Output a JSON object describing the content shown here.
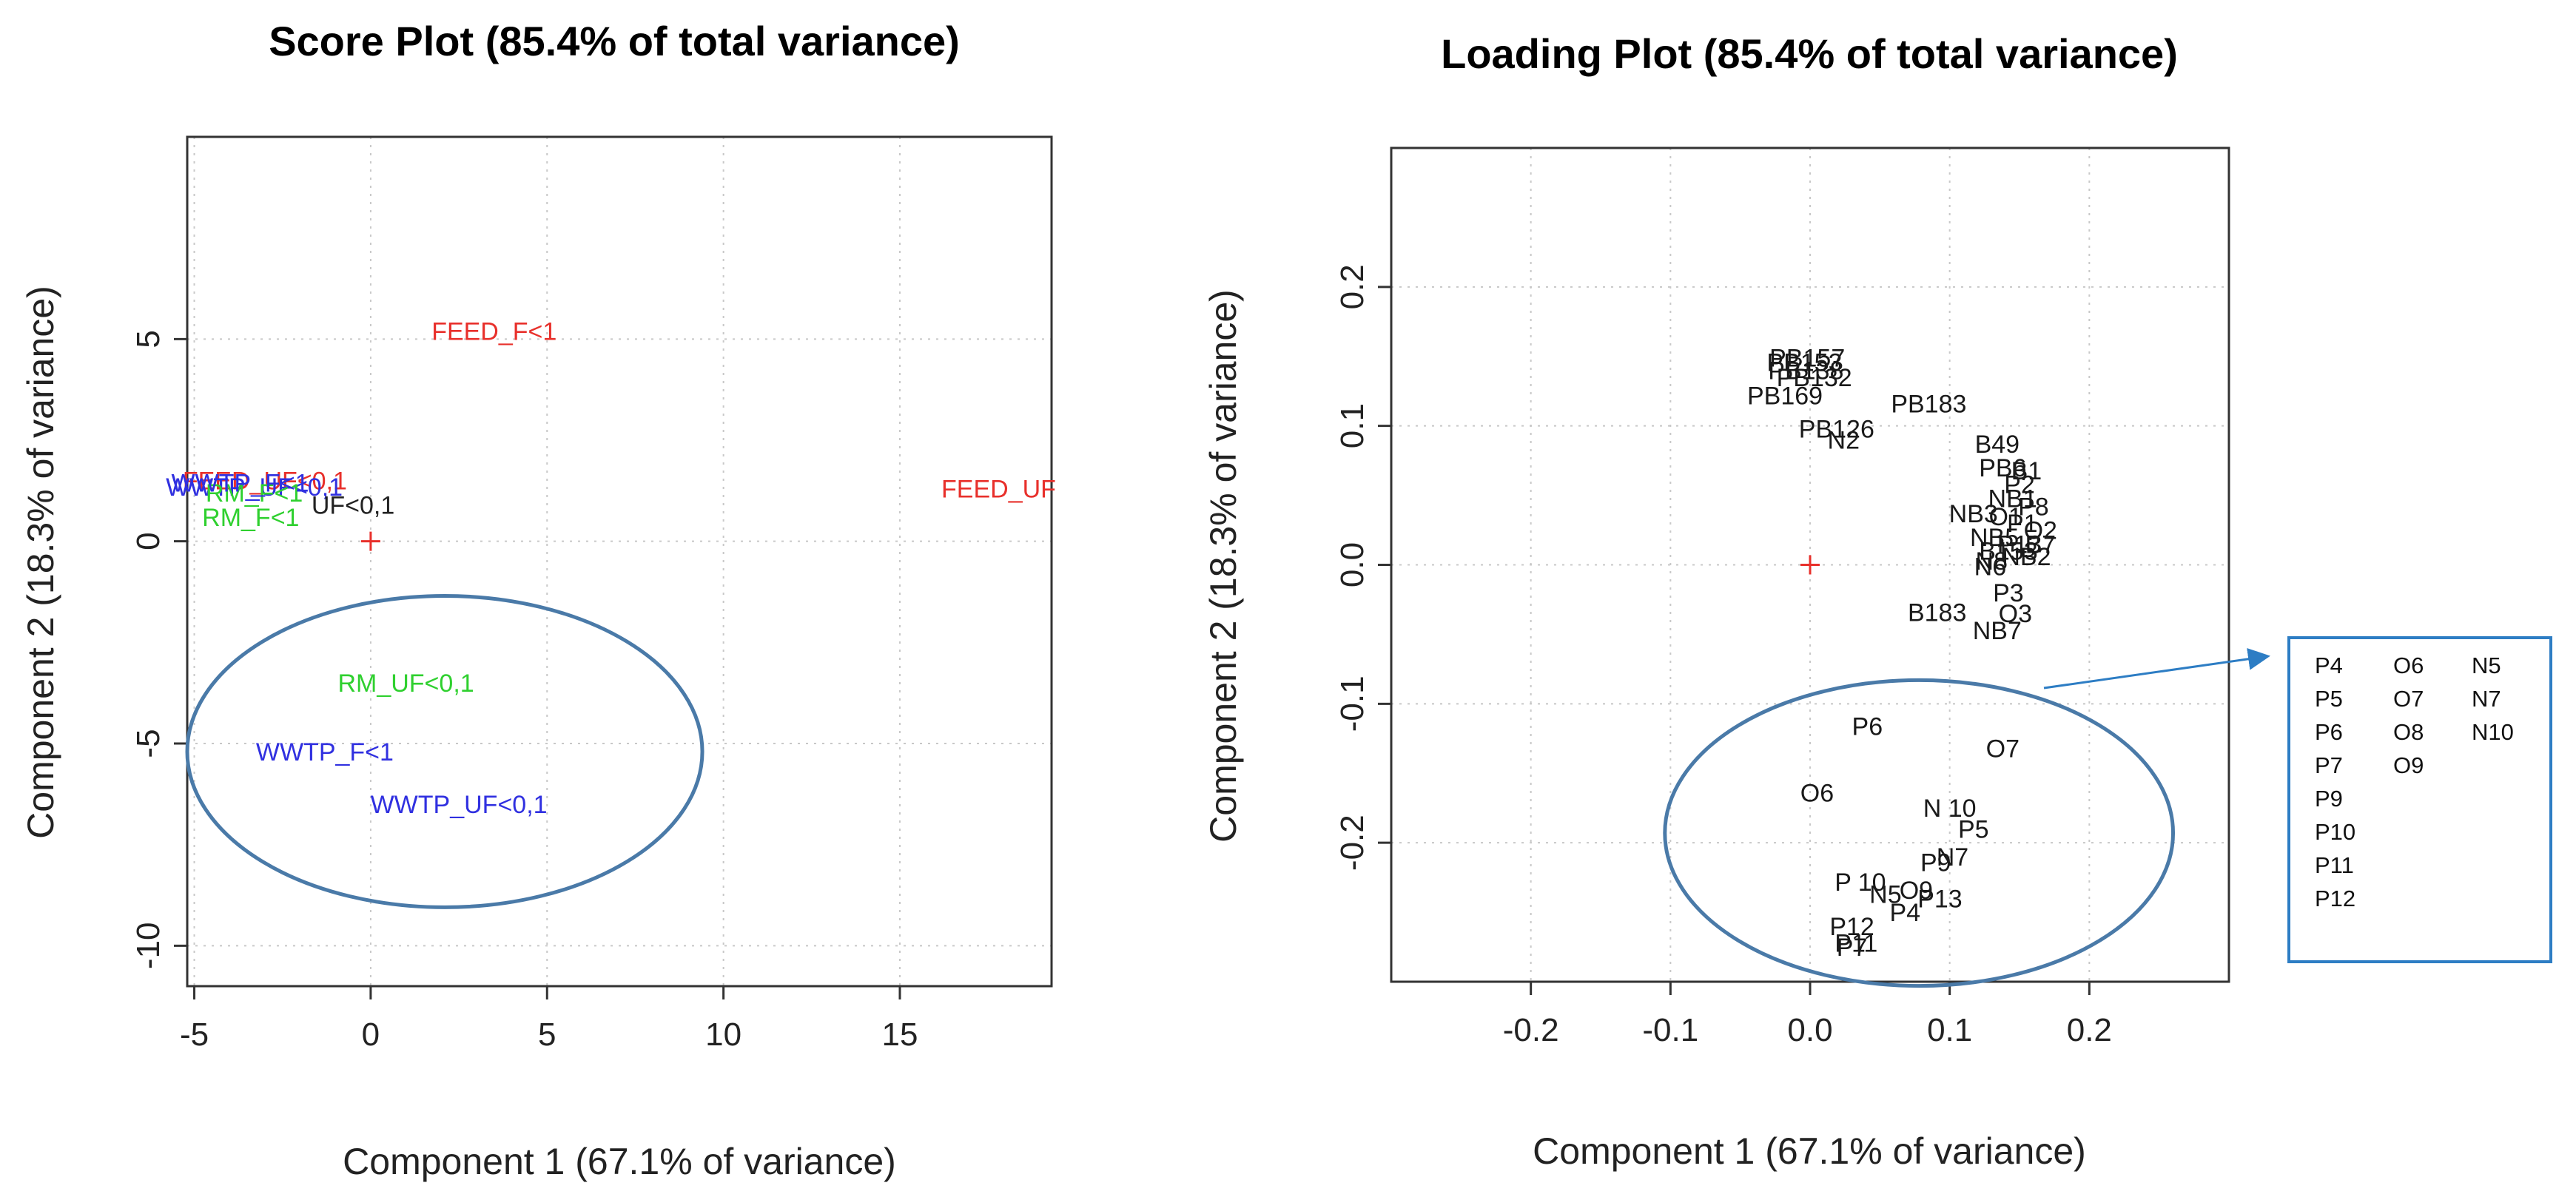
{
  "chart_data": [
    {
      "type": "scatter",
      "title": "Score Plot (85.4% of total variance)",
      "xlabel": "Component 1 (67.1% of variance)",
      "ylabel": "Component 2 (18.3% of variance)",
      "xlim": [
        -5.2,
        19.3
      ],
      "ylim": [
        -11.0,
        10.0
      ],
      "xticks": [
        -5,
        0,
        5,
        10,
        15
      ],
      "yticks": [
        -10,
        -5,
        0,
        5
      ],
      "grid": true,
      "origin_marker": "+",
      "points": [
        {
          "label": "FEED_F<1",
          "x": 3.5,
          "y": 5.2,
          "color": "#e8302b"
        },
        {
          "label": "FEED_UF",
          "x": 17.8,
          "y": 1.3,
          "color": "#e8302b"
        },
        {
          "label": "FEED_UF<0,1",
          "x": -3.0,
          "y": 1.5,
          "color": "#e8302b"
        },
        {
          "label": "WWTP_UF<0,1",
          "x": -3.3,
          "y": 1.35,
          "color": "#3030e0"
        },
        {
          "label": "RM_F<1",
          "x": -3.3,
          "y": 1.2,
          "color": "#2fd02f"
        },
        {
          "label": "WWTP_F<1",
          "x": -3.7,
          "y": 1.45,
          "color": "#3030e0"
        },
        {
          "label": "UF<0,1",
          "x": -0.5,
          "y": 0.9,
          "color": "#222222"
        },
        {
          "label": "RM_F<1",
          "x": -3.4,
          "y": 0.6,
          "color": "#2fd02f"
        },
        {
          "label": "RM_UF<0,1",
          "x": 1.0,
          "y": -3.5,
          "color": "#2fd02f"
        },
        {
          "label": "WWTP_F<1",
          "x": -1.3,
          "y": -5.2,
          "color": "#3030e0"
        },
        {
          "label": "WWTP_UF<0,1",
          "x": 2.5,
          "y": -6.5,
          "color": "#3030e0"
        }
      ],
      "ellipse": {
        "cx": 2.1,
        "cy": -5.2,
        "rx": 7.3,
        "ry": 3.85
      }
    },
    {
      "type": "scatter",
      "title": "Loading Plot (85.4% of total variance)",
      "xlabel": "Component 1 (67.1% of variance)",
      "ylabel": "Component 2 (18.3% of variance)",
      "xlim": [
        -0.3,
        0.3
      ],
      "ylim": [
        -0.3,
        0.3
      ],
      "xticks": [
        -0.2,
        -0.1,
        0.0,
        0.1,
        0.2
      ],
      "yticks": [
        -0.2,
        -0.1,
        0.0,
        0.1,
        0.2
      ],
      "grid": true,
      "origin_marker": "+",
      "points": [
        {
          "label": "PB157",
          "x": -0.002,
          "y": 0.149
        },
        {
          "label": "PB153",
          "x": -0.004,
          "y": 0.146
        },
        {
          "label": "PB138",
          "x": -0.003,
          "y": 0.14
        },
        {
          "label": "PB132",
          "x": 0.003,
          "y": 0.135
        },
        {
          "label": "PB169",
          "x": -0.018,
          "y": 0.122
        },
        {
          "label": "PB183",
          "x": 0.085,
          "y": 0.116
        },
        {
          "label": "PB126",
          "x": 0.019,
          "y": 0.098
        },
        {
          "label": "N2",
          "x": 0.024,
          "y": 0.09
        },
        {
          "label": "B49",
          "x": 0.134,
          "y": 0.087
        },
        {
          "label": "PB6",
          "x": 0.138,
          "y": 0.07
        },
        {
          "label": "B1",
          "x": 0.155,
          "y": 0.068
        },
        {
          "label": "P2",
          "x": 0.15,
          "y": 0.058
        },
        {
          "label": "NB1",
          "x": 0.145,
          "y": 0.048
        },
        {
          "label": "P8",
          "x": 0.16,
          "y": 0.042
        },
        {
          "label": "NB3",
          "x": 0.117,
          "y": 0.037
        },
        {
          "label": "O1",
          "x": 0.14,
          "y": 0.035
        },
        {
          "label": "P1",
          "x": 0.152,
          "y": 0.03
        },
        {
          "label": "O2",
          "x": 0.165,
          "y": 0.025
        },
        {
          "label": "NB5",
          "x": 0.132,
          "y": 0.02
        },
        {
          "label": "P13",
          "x": 0.15,
          "y": 0.015
        },
        {
          "label": "B153",
          "x": 0.142,
          "y": 0.01
        },
        {
          "label": "B7",
          "x": 0.165,
          "y": 0.015
        },
        {
          "label": "N8",
          "x": 0.13,
          "y": 0.003
        },
        {
          "label": "NB2",
          "x": 0.155,
          "y": 0.006
        },
        {
          "label": "N6",
          "x": 0.129,
          "y": -0.001
        },
        {
          "label": "P3",
          "x": 0.142,
          "y": -0.02
        },
        {
          "label": "O3",
          "x": 0.147,
          "y": -0.035
        },
        {
          "label": "B183",
          "x": 0.091,
          "y": -0.034
        },
        {
          "label": "NB7",
          "x": 0.134,
          "y": -0.047
        },
        {
          "label": "P6",
          "x": 0.041,
          "y": -0.116
        },
        {
          "label": "O7",
          "x": 0.138,
          "y": -0.132
        },
        {
          "label": "O6",
          "x": 0.005,
          "y": -0.164
        },
        {
          "label": "N 10",
          "x": 0.1,
          "y": -0.175
        },
        {
          "label": "P5",
          "x": 0.117,
          "y": -0.19
        },
        {
          "label": "N7",
          "x": 0.102,
          "y": -0.21
        },
        {
          "label": "P9",
          "x": 0.09,
          "y": -0.214
        },
        {
          "label": "P 10",
          "x": 0.036,
          "y": -0.228
        },
        {
          "label": "N5",
          "x": 0.054,
          "y": -0.237
        },
        {
          "label": "O9",
          "x": 0.076,
          "y": -0.234
        },
        {
          "label": "P13",
          "x": 0.093,
          "y": -0.24
        },
        {
          "label": "P4",
          "x": 0.068,
          "y": -0.25
        },
        {
          "label": "P12",
          "x": 0.03,
          "y": -0.26
        },
        {
          "label": "P11",
          "x": 0.033,
          "y": -0.272
        },
        {
          "label": "P7",
          "x": 0.03,
          "y": -0.275
        }
      ],
      "ellipse": {
        "cx": 0.078,
        "cy": -0.193,
        "rx": 0.182,
        "ry": 0.11
      },
      "legend_box": {
        "columns": [
          [
            "P4",
            "P5",
            "P6",
            "P7",
            "P9",
            "P10",
            "P11",
            "P12"
          ],
          [
            "O6",
            "O7",
            "O8",
            "O9"
          ],
          [
            "N5",
            "N7",
            "N10"
          ]
        ]
      }
    }
  ]
}
